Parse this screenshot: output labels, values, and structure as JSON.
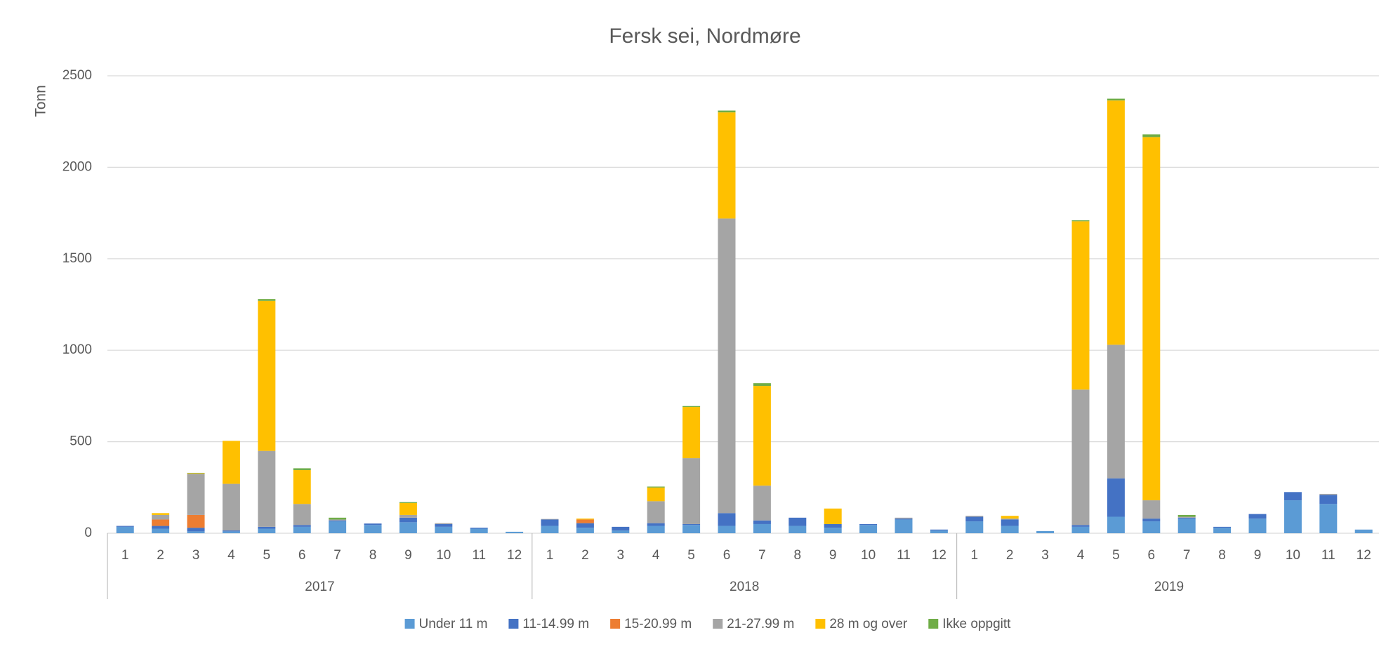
{
  "chart_data": {
    "type": "stacked_bar",
    "title": "Fersk sei, Nordmøre",
    "ylabel": "Tonn",
    "categories": [
      "1",
      "2",
      "3",
      "4",
      "5",
      "6",
      "7",
      "8",
      "9",
      "10",
      "11",
      "12",
      "1",
      "2",
      "3",
      "4",
      "5",
      "6",
      "7",
      "8",
      "9",
      "10",
      "11",
      "12",
      "1",
      "2",
      "3",
      "4",
      "5",
      "6",
      "7",
      "8",
      "9",
      "10",
      "11",
      "12"
    ],
    "groups": [
      "2017",
      "2018",
      "2019"
    ],
    "series": [
      {
        "name": "Under 11 m",
        "color": "#5b9bd5",
        "values": [
          35,
          25,
          10,
          10,
          25,
          35,
          65,
          45,
          60,
          35,
          25,
          8,
          40,
          30,
          15,
          40,
          45,
          40,
          50,
          40,
          30,
          45,
          75,
          15,
          65,
          40,
          12,
          35,
          90,
          65,
          80,
          30,
          80,
          180,
          160,
          20
        ]
      },
      {
        "name": "11-14.99 m",
        "color": "#4472c4",
        "values": [
          5,
          15,
          20,
          5,
          10,
          10,
          5,
          8,
          25,
          15,
          5,
          0,
          35,
          25,
          20,
          15,
          5,
          70,
          20,
          45,
          20,
          5,
          5,
          5,
          25,
          35,
          0,
          10,
          210,
          15,
          5,
          5,
          25,
          45,
          50,
          0
        ]
      },
      {
        "name": "15-20.99 m",
        "color": "#ed7d31",
        "values": [
          0,
          35,
          70,
          0,
          0,
          0,
          0,
          0,
          0,
          0,
          0,
          0,
          0,
          20,
          0,
          0,
          0,
          0,
          0,
          0,
          0,
          0,
          0,
          0,
          0,
          0,
          0,
          0,
          0,
          0,
          0,
          0,
          0,
          0,
          0,
          0
        ]
      },
      {
        "name": "21-27.99 m",
        "color": "#a5a5a5",
        "values": [
          0,
          25,
          225,
          255,
          415,
          115,
          5,
          0,
          15,
          5,
          0,
          0,
          3,
          0,
          0,
          120,
          360,
          1610,
          190,
          0,
          0,
          0,
          5,
          0,
          5,
          5,
          0,
          740,
          730,
          100,
          5,
          0,
          0,
          0,
          5,
          0
        ]
      },
      {
        "name": "28 m og over",
        "color": "#ffc000",
        "values": [
          0,
          10,
          3,
          235,
          820,
          185,
          0,
          0,
          65,
          0,
          0,
          0,
          0,
          5,
          0,
          75,
          280,
          580,
          545,
          0,
          85,
          0,
          0,
          0,
          0,
          15,
          0,
          920,
          1335,
          1985,
          0,
          0,
          0,
          0,
          0,
          0
        ]
      },
      {
        "name": "Ikke oppgitt",
        "color": "#70ad47",
        "values": [
          0,
          0,
          2,
          0,
          10,
          10,
          10,
          0,
          5,
          0,
          0,
          0,
          0,
          0,
          0,
          5,
          5,
          10,
          15,
          0,
          0,
          0,
          0,
          0,
          0,
          0,
          0,
          5,
          10,
          15,
          10,
          0,
          0,
          0,
          0,
          0
        ]
      }
    ],
    "ylim": [
      0,
      2500
    ],
    "yticks": [
      0,
      500,
      1000,
      1500,
      2000,
      2500
    ],
    "grid": true,
    "legend": "bottom"
  }
}
